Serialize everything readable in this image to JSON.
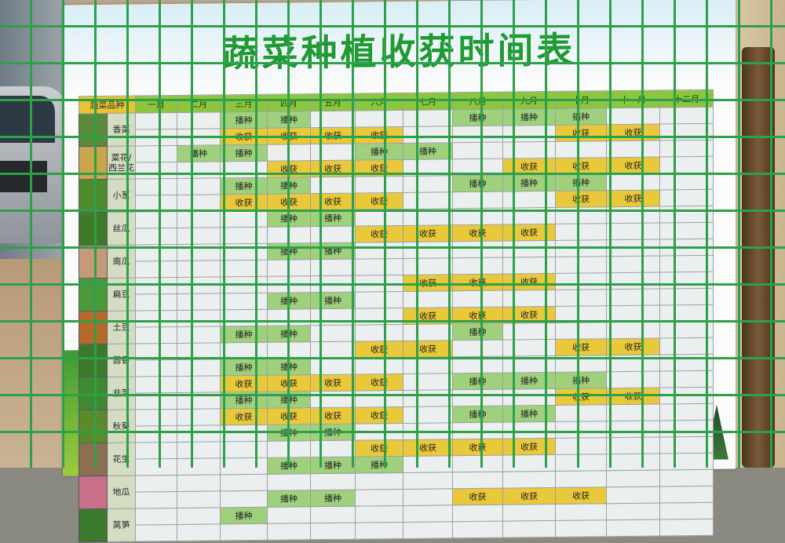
{
  "title": "蔬菜种植收获时间表",
  "header": [
    "蔬菜品种",
    "一月",
    "二月",
    "三月",
    "四月",
    "五月",
    "六月",
    "七月",
    "八月",
    "九月",
    "十月",
    "十一月",
    "十二月"
  ],
  "colors": {
    "sow": "#9fd07c",
    "harvest": "#e9c93a",
    "header": "#8cc63f",
    "title": "#1f9a35"
  },
  "labels": {
    "sow": "播种",
    "harvest": "收获"
  },
  "vegetables": [
    {
      "name": "香菜",
      "pic": "#5a8a3a",
      "rows": [
        [
          "",
          "",
          "播种",
          "播种",
          "",
          "",
          "",
          "播种",
          "播种",
          "播种",
          "",
          ""
        ],
        [
          "",
          "",
          "收获",
          "收获",
          "收获",
          "收获",
          "",
          "",
          "",
          "收获",
          "收获",
          ""
        ]
      ]
    },
    {
      "name": "菜花/西兰花",
      "pic": "#c9a64a",
      "rows": [
        [
          "",
          "播种",
          "播种",
          "",
          "",
          "播种",
          "播种",
          "",
          "",
          "",
          "",
          ""
        ],
        [
          "",
          "",
          "",
          "收获",
          "收获",
          "收获",
          "",
          "",
          "收获",
          "收获",
          "收获",
          ""
        ]
      ]
    },
    {
      "name": "小葱",
      "pic": "#4e8a2e",
      "rows": [
        [
          "",
          "",
          "播种",
          "播种",
          "",
          "",
          "",
          "播种",
          "播种",
          "播种",
          "",
          ""
        ],
        [
          "",
          "",
          "收获",
          "收获",
          "收获",
          "收获",
          "",
          "",
          "",
          "收获",
          "收获",
          ""
        ]
      ]
    },
    {
      "name": "丝瓜",
      "pic": "#3f7a28",
      "rows": [
        [
          "",
          "",
          "",
          "播种",
          "播种",
          "",
          "",
          "",
          "",
          "",
          "",
          ""
        ],
        [
          "",
          "",
          "",
          "",
          "",
          "收获",
          "收获",
          "收获",
          "收获",
          "",
          "",
          ""
        ]
      ]
    },
    {
      "name": "南瓜",
      "pic": "#c49a7a",
      "rows": [
        [
          "",
          "",
          "",
          "播种",
          "播种",
          "",
          "",
          "",
          "",
          "",
          "",
          ""
        ],
        [
          "",
          "",
          "",
          "",
          "",
          "",
          "",
          "",
          "",
          "",
          "",
          ""
        ]
      ]
    },
    {
      "name": "扁豆",
      "pic": "#4a9a3a",
      "rows": [
        [
          "",
          "",
          "",
          "",
          "",
          "",
          "收获",
          "收获",
          "收获",
          "",
          "",
          ""
        ],
        [
          "",
          "",
          "",
          "播种",
          "播种",
          "",
          "",
          "",
          "",
          "",
          "",
          ""
        ]
      ]
    },
    {
      "name": "土豆",
      "pic": "#b56a2a",
      "rows": [
        [
          "",
          "",
          "",
          "",
          "",
          "",
          "收获",
          "收获",
          "收获",
          "",
          "",
          ""
        ],
        [
          "",
          "",
          "播种",
          "播种",
          "",
          "",
          "",
          "播种",
          "",
          "",
          "",
          ""
        ]
      ]
    },
    {
      "name": "茴香",
      "pic": "#3a7a2a",
      "rows": [
        [
          "",
          "",
          "",
          "",
          "",
          "收获",
          "收获",
          "",
          "",
          "收获",
          "收获",
          ""
        ],
        [
          "",
          "",
          "播种",
          "播种",
          "",
          "",
          "",
          "",
          "",
          "",
          "",
          ""
        ]
      ]
    },
    {
      "name": "韭菜",
      "pic": "#3e8a30",
      "rows": [
        [
          "",
          "",
          "收获",
          "收获",
          "收获",
          "收获",
          "",
          "播种",
          "播种",
          "播种",
          "",
          ""
        ],
        [
          "",
          "",
          "播种",
          "播种",
          "",
          "",
          "",
          "",
          "",
          "收获",
          "收获",
          ""
        ]
      ]
    },
    {
      "name": "秋葵",
      "pic": "#5a8a2a",
      "rows": [
        [
          "",
          "",
          "收获",
          "收获",
          "收获",
          "收获",
          "",
          "播种",
          "播种",
          "",
          "",
          ""
        ],
        [
          "",
          "",
          "",
          "播种",
          "播种",
          "",
          "",
          "",
          "",
          "",
          "",
          ""
        ]
      ]
    },
    {
      "name": "花生",
      "pic": "#8a7050",
      "rows": [
        [
          "",
          "",
          "",
          "",
          "",
          "收获",
          "收获",
          "收获",
          "收获",
          "",
          "",
          ""
        ],
        [
          "",
          "",
          "",
          "播种",
          "播种",
          "播种",
          "",
          "",
          "",
          "",
          "",
          ""
        ]
      ]
    },
    {
      "name": "地瓜",
      "pic": "#c8708a",
      "rows": [
        [
          "",
          "",
          "",
          "",
          "",
          "",
          "",
          "",
          "",
          "",
          "",
          ""
        ],
        [
          "",
          "",
          "",
          "播种",
          "播种",
          "",
          "",
          "收获",
          "收获",
          "收获",
          "",
          ""
        ]
      ]
    },
    {
      "name": "莴笋",
      "pic": "#3a7a2a",
      "rows": [
        [
          "",
          "",
          "播种",
          "",
          "",
          "",
          "",
          "",
          "",
          "",
          "",
          ""
        ],
        [
          "",
          "",
          "",
          "",
          "",
          "",
          "",
          "",
          "",
          "",
          "",
          ""
        ]
      ]
    }
  ]
}
